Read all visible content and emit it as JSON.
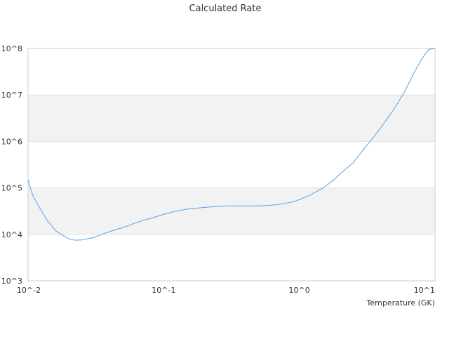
{
  "chart_data": {
    "type": "line",
    "title": "Calculated Rate",
    "xlabel": "Temperature (GK)",
    "ylabel": "",
    "x_scale": "log",
    "y_scale": "log",
    "xlim": [
      0.01,
      10
    ],
    "ylim": [
      1000,
      100000000
    ],
    "x_ticks": [
      "10^-2",
      "10^-1",
      "10^0",
      "10^1"
    ],
    "y_ticks": [
      "10^3",
      "10^4",
      "10^5",
      "10^6",
      "10^7",
      "10^8"
    ],
    "grid": true,
    "legend": "none",
    "series": [
      {
        "color": "#5a9fe6",
        "x": [
          0.01,
          0.0105,
          0.011,
          0.012,
          0.013,
          0.014,
          0.015,
          0.016,
          0.018,
          0.02,
          0.022,
          0.025,
          0.03,
          0.035,
          0.04,
          0.05,
          0.06,
          0.07,
          0.08,
          0.1,
          0.12,
          0.15,
          0.2,
          0.25,
          0.3,
          0.4,
          0.5,
          0.6,
          0.7,
          0.8,
          0.9,
          1.0,
          1.2,
          1.5,
          1.8,
          2.0,
          2.5,
          3.0,
          3.5,
          4.0,
          5.0,
          6.0,
          7.0,
          8.0,
          9.0,
          10.0
        ],
        "y": [
          150000,
          90000,
          63000,
          40000,
          27000,
          19000,
          15000,
          12000,
          9500,
          8000,
          7500,
          7600,
          8500,
          10000,
          11500,
          14000,
          17000,
          20000,
          22000,
          27000,
          31000,
          35000,
          38000,
          40000,
          41000,
          41000,
          41000,
          42000,
          44000,
          47000,
          50000,
          56000,
          70000,
          100000,
          150000,
          200000,
          350000,
          700000,
          1200000,
          2000000,
          5000000,
          12000000,
          30000000,
          60000000,
          95000000,
          100000000
        ]
      }
    ]
  }
}
